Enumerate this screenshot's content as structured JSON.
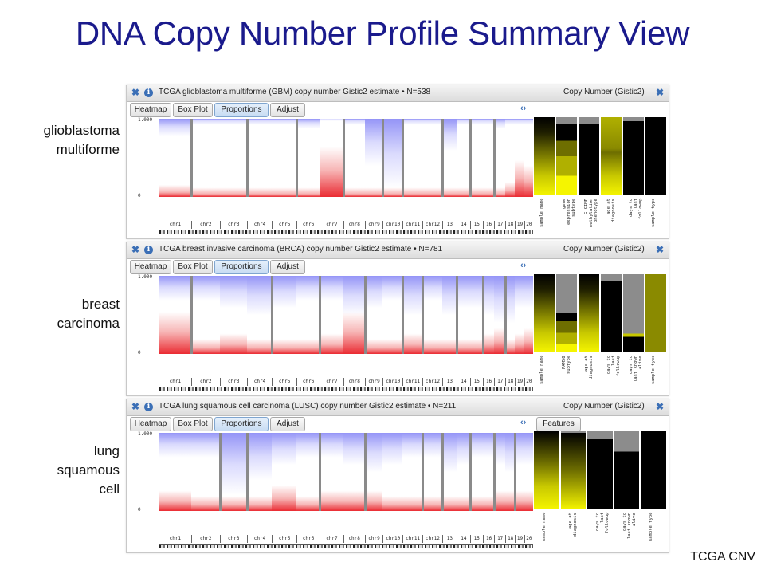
{
  "slide": {
    "title": "DNA Copy Number Profile Summary View",
    "footer": "TCGA CNV"
  },
  "toolbar": {
    "heatmap": "Heatmap",
    "boxplot": "Box Plot",
    "proportions": "Proportions",
    "adjust": "Adjust",
    "features": "Features"
  },
  "common": {
    "right_title": "Copy Number (Gistic2)",
    "ymax": "1.000",
    "ymin": "0",
    "chromosomes": [
      "chr1",
      "chr2",
      "chr3",
      "chr4",
      "chr5",
      "chr6",
      "chr7",
      "chr8",
      "chr9",
      "chr10",
      "chr11",
      "chr12",
      "13",
      "14",
      "15",
      "16",
      "17",
      "18",
      "19",
      "20"
    ]
  },
  "panels": [
    {
      "side_label": [
        "glioblastoma",
        "multiforme"
      ],
      "title": "TCGA glioblastoma multiforme (GBM) copy number Gistic2 estimate • N=538",
      "features": [
        "sample name",
        "gene\nexpression\nsubtype",
        "G-CIMP\nmethylation\nphenotype",
        "age at\ndiagnosis",
        "days to\nlast\nfollowup",
        "sample type"
      ]
    },
    {
      "side_label": [
        "breast",
        "carcinoma"
      ],
      "title": "TCGA breast invasive carcinoma (BRCA) copy number Gistic2 estimate • N=781",
      "features": [
        "sample name",
        "PAM50\nsubtype",
        "age at\ndiagnosis",
        "days to\nlast\nfollowup",
        "days to\nlast known\nalive",
        "sample type"
      ]
    },
    {
      "side_label": [
        "lung",
        "squamous",
        "cell"
      ],
      "title": "TCGA lung squamous cell carcinoma (LUSC) copy number Gistic2 estimate • N=211",
      "features": [
        "sample name",
        "age at\ndiagnosis",
        "days to\nlast\nfollowup",
        "days to\nlast known\nalive",
        "sample type"
      ]
    }
  ],
  "colors": {
    "title": "#1a1a8c",
    "gain": "#e8141c",
    "loss": "#3a3af0",
    "heat_high": "#f5f500",
    "heat_low": "#000000",
    "na": "#8c8c8c"
  }
}
